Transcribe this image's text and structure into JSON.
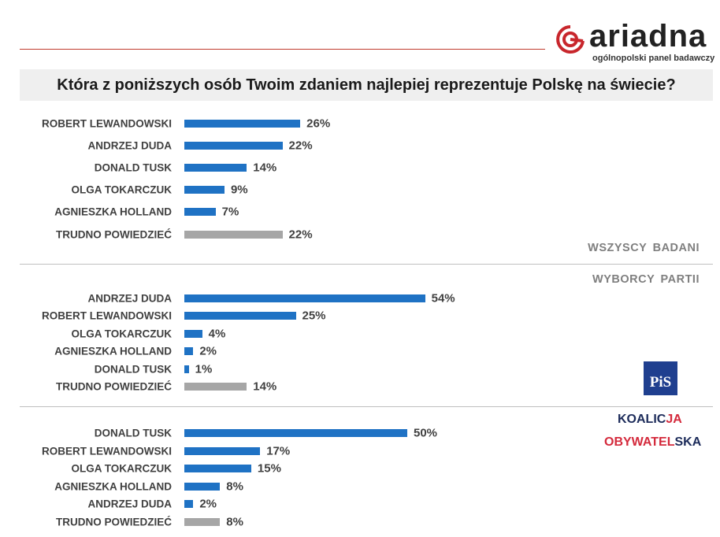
{
  "logo": {
    "name": "ariadna",
    "subtitle": "ogólnopolski panel badawczy",
    "color": "#c8262c"
  },
  "chart_data": [
    {
      "type": "bar",
      "title": "Która z poniższych osób Twoim zdaniem najlepiej reprezentuje Polskę na świecie?",
      "group": "WSZYSCY BADANI",
      "categories": [
        "ROBERT LEWANDOWSKI",
        "ANDRZEJ DUDA",
        "DONALD TUSK",
        "OLGA TOKARCZUK",
        "AGNIESZKA HOLLAND",
        "TRUDNO POWIEDZIEĆ"
      ],
      "values": [
        26,
        22,
        14,
        9,
        7,
        22
      ],
      "labels": [
        "26%",
        "22%",
        "14%",
        "9%",
        "7%",
        "22%"
      ],
      "unit": "%"
    },
    {
      "type": "bar",
      "group": "WYBORCY PARTII",
      "party": "PiS",
      "categories": [
        "ANDRZEJ DUDA",
        "ROBERT LEWANDOWSKI",
        "OLGA TOKARCZUK",
        "AGNIESZKA HOLLAND",
        "DONALD TUSK",
        "TRUDNO POWIEDZIEĆ"
      ],
      "values": [
        54,
        25,
        4,
        2,
        1,
        14
      ],
      "labels": [
        "54%",
        "25%",
        "4%",
        "2%",
        "1%",
        "14%"
      ],
      "unit": "%"
    },
    {
      "type": "bar",
      "party_line1": "KOALIC",
      "party_line1_red": "JA",
      "party_line2_red": "OBYWATEL",
      "party_line2": "SKA",
      "categories": [
        "DONALD TUSK",
        "ROBERT LEWANDOWSKI",
        "OLGA TOKARCZUK",
        "AGNIESZKA HOLLAND",
        "ANDRZEJ DUDA",
        "TRUDNO POWIEDZIEĆ"
      ],
      "values": [
        50,
        17,
        15,
        8,
        2,
        8
      ],
      "labels": [
        "50%",
        "17%",
        "15%",
        "8%",
        "2%",
        "8%"
      ],
      "unit": "%"
    }
  ],
  "colors": {
    "bar": "#1f72c4",
    "undecided": "#a6a6a6"
  }
}
